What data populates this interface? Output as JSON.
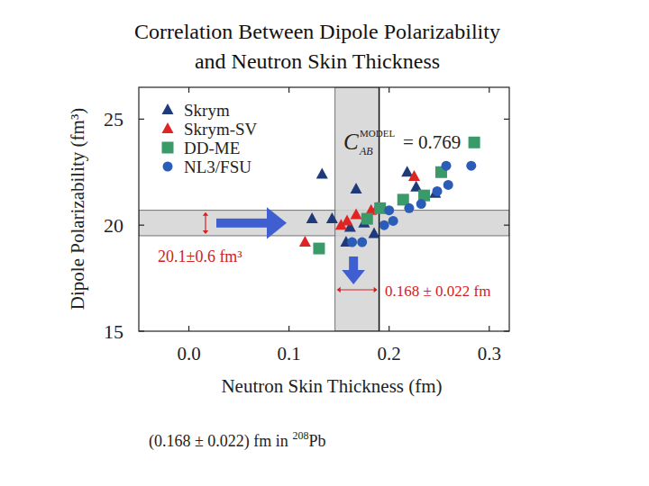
{
  "chart_data": {
    "type": "scatter",
    "title": [
      "Correlation  Between Dipole Polarizability",
      "and Neutron Skin Thickness"
    ],
    "x_label": "Neutron Skin Thickness (fm)",
    "y_label": "Dipole Polarizability (fm³)",
    "xlim": [
      -0.05,
      0.32
    ],
    "ylim": [
      15,
      26.5
    ],
    "xticks": [
      {
        "value": 0,
        "label": "0.0"
      },
      {
        "value": 0.1,
        "label": "0.1"
      },
      {
        "value": 0.2,
        "label": "0.2"
      },
      {
        "value": 0.3,
        "label": "0.3"
      }
    ],
    "yticks": [
      15,
      20,
      25
    ],
    "legend": "upper left",
    "series": [
      {
        "name": "Skrym",
        "color": "#1f3a7a",
        "marker": "triangle",
        "x": [
          0.133,
          0.167,
          0.123,
          0.143,
          0.157,
          0.161,
          0.175,
          0.185,
          0.188,
          0.218,
          0.227,
          0.246
        ],
        "values": [
          22.4,
          21.7,
          20.3,
          20.3,
          19.2,
          19.9,
          20.1,
          19.6,
          20.8,
          22.5,
          21.8,
          21.5
        ]
      },
      {
        "name": "Skrym-SV",
        "color": "#e02424",
        "marker": "triangle",
        "x": [
          0.116,
          0.152,
          0.158,
          0.167,
          0.182,
          0.225
        ],
        "values": [
          19.2,
          20.0,
          20.2,
          20.5,
          20.7,
          22.3
        ]
      },
      {
        "name": "DD-ME",
        "color": "#3a9a6a",
        "marker": "square",
        "x": [
          0.13,
          0.178,
          0.191,
          0.214,
          0.235,
          0.252,
          0.285
        ],
        "values": [
          18.9,
          20.3,
          20.8,
          21.2,
          21.4,
          22.5,
          23.9
        ]
      },
      {
        "name": "NL3/FSU",
        "color": "#2a5cb8",
        "marker": "circle",
        "x": [
          0.163,
          0.173,
          0.195,
          0.204,
          0.2,
          0.22,
          0.232,
          0.248,
          0.259,
          0.257,
          0.282
        ],
        "values": [
          19.2,
          19.2,
          20.0,
          20.2,
          20.7,
          20.8,
          21.0,
          21.6,
          21.9,
          22.8,
          22.8
        ]
      }
    ],
    "bands": [
      {
        "axis": "y",
        "center": 20.1,
        "error": 0.6,
        "label": "20.1±0.6 fm³"
      },
      {
        "axis": "x",
        "center": 0.168,
        "error": 0.022,
        "label": "0.168 ± 0.022 fm"
      }
    ],
    "reference_line": {
      "axis": "x",
      "value": 0.19
    },
    "correlation": {
      "symbol": "C",
      "subscript": "AB",
      "superscript": "MODEL",
      "text": "= 0.769"
    },
    "footnote": {
      "text": "(0.168 ± 0.022) fm in ",
      "isotope_mass": "208",
      "element": "Pb"
    }
  }
}
